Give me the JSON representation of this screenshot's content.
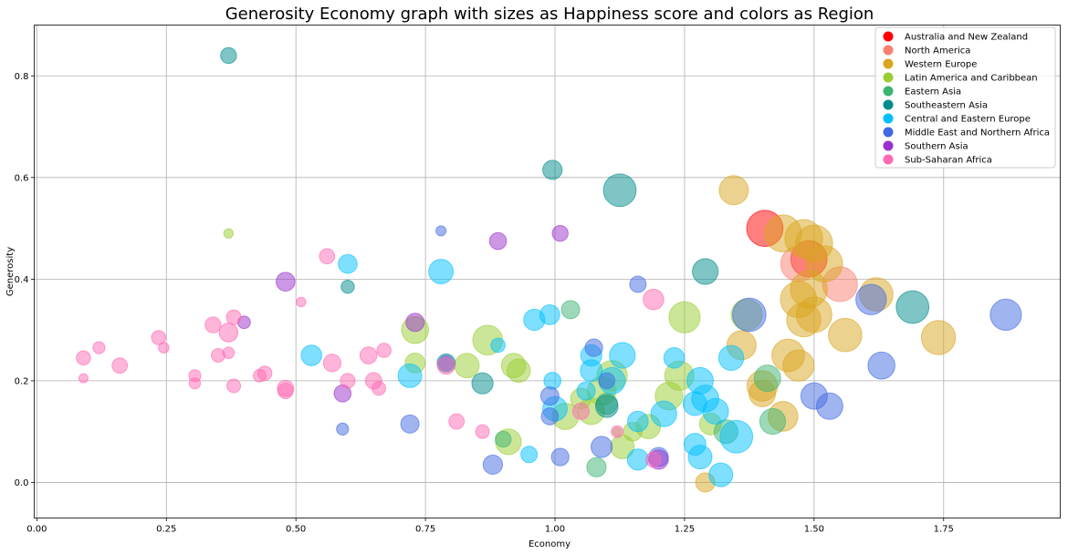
{
  "chart_data": {
    "type": "scatter",
    "title": "Generosity Economy graph with sizes as Happiness score and colors as Region",
    "xlabel": "Economy",
    "ylabel": "Generosity",
    "xlim": [
      -0.005,
      1.975
    ],
    "ylim": [
      -0.07,
      0.9
    ],
    "xticks": [
      0.0,
      0.25,
      0.5,
      0.75,
      1.0,
      1.25,
      1.5,
      1.75
    ],
    "xtick_labels": [
      "0.00",
      "0.25",
      "0.50",
      "0.75",
      "1.00",
      "1.25",
      "1.50",
      "1.75"
    ],
    "yticks": [
      0.0,
      0.2,
      0.4,
      0.6,
      0.8
    ],
    "ytick_labels": [
      "0.0",
      "0.2",
      "0.4",
      "0.6",
      "0.8"
    ],
    "grid": true,
    "legend_position": "top-right",
    "marker_alpha": 0.5,
    "series": [
      {
        "name": "Australia and New Zealand",
        "color": "#ff0000",
        "points": [
          [
            1.405,
            0.5,
            7.3
          ],
          [
            1.49,
            0.44,
            7.3
          ]
        ]
      },
      {
        "name": "North America",
        "color": "#fa8072",
        "points": [
          [
            1.55,
            0.39,
            7.1
          ],
          [
            1.47,
            0.43,
            7.2
          ]
        ]
      },
      {
        "name": "Western Europe",
        "color": "#daa520",
        "points": [
          [
            1.345,
            0.575,
            6.3
          ],
          [
            1.44,
            0.49,
            7.4
          ],
          [
            1.48,
            0.48,
            7.5
          ],
          [
            1.5,
            0.47,
            7.4
          ],
          [
            1.52,
            0.43,
            7.3
          ],
          [
            1.49,
            0.38,
            7.4
          ],
          [
            1.47,
            0.36,
            7.3
          ],
          [
            1.5,
            0.33,
            7.2
          ],
          [
            1.48,
            0.32,
            7.0
          ],
          [
            1.62,
            0.37,
            6.9
          ],
          [
            1.56,
            0.29,
            6.9
          ],
          [
            1.74,
            0.285,
            7.0
          ],
          [
            1.45,
            0.25,
            6.8
          ],
          [
            1.47,
            0.23,
            6.6
          ],
          [
            1.4,
            0.19,
            6.5
          ],
          [
            1.36,
            0.27,
            6.3
          ],
          [
            1.44,
            0.13,
            6.4
          ],
          [
            1.4,
            0.175,
            5.9
          ],
          [
            1.29,
            0.0,
            4.8
          ]
        ]
      },
      {
        "name": "Latin America and Caribbean",
        "color": "#9acd32",
        "points": [
          [
            1.25,
            0.325,
            6.6
          ],
          [
            1.37,
            0.33,
            6.6
          ],
          [
            1.24,
            0.21,
            6.3
          ],
          [
            0.87,
            0.28,
            6.4
          ],
          [
            0.73,
            0.3,
            6.0
          ],
          [
            1.11,
            0.21,
            6.5
          ],
          [
            1.09,
            0.18,
            6.2
          ],
          [
            1.07,
            0.14,
            5.9
          ],
          [
            0.92,
            0.23,
            5.6
          ],
          [
            0.93,
            0.22,
            5.4
          ],
          [
            0.83,
            0.23,
            5.6
          ],
          [
            1.02,
            0.13,
            5.9
          ],
          [
            1.13,
            0.07,
            5.5
          ],
          [
            1.18,
            0.11,
            5.6
          ],
          [
            1.22,
            0.17,
            6.1
          ],
          [
            0.91,
            0.08,
            5.8
          ],
          [
            0.73,
            0.235,
            4.9
          ],
          [
            1.15,
            0.1,
            4.7
          ],
          [
            1.12,
            0.1,
            2.8
          ],
          [
            0.37,
            0.49,
            3.0
          ],
          [
            1.05,
            0.165,
            5.0
          ],
          [
            1.3,
            0.115,
            5.2
          ]
        ]
      },
      {
        "name": "Eastern Asia",
        "color": "#3cb371",
        "points": [
          [
            1.42,
            0.12,
            5.8
          ],
          [
            1.41,
            0.205,
            5.9
          ],
          [
            1.33,
            0.1,
            5.5
          ],
          [
            1.1,
            0.155,
            5.1
          ],
          [
            0.9,
            0.085,
            4.2
          ],
          [
            1.03,
            0.34,
            4.6
          ],
          [
            1.08,
            0.03,
            4.8
          ]
        ]
      },
      {
        "name": "Southeastern Asia",
        "color": "#008b8b",
        "points": [
          [
            0.37,
            0.84,
            4.2
          ],
          [
            1.125,
            0.575,
            6.8
          ],
          [
            0.995,
            0.615,
            4.8
          ],
          [
            1.29,
            0.415,
            5.8
          ],
          [
            1.69,
            0.345,
            6.8
          ],
          [
            0.6,
            0.385,
            3.7
          ],
          [
            0.86,
            0.195,
            5.1
          ],
          [
            0.79,
            0.235,
            4.6
          ],
          [
            1.1,
            0.15,
            5.3
          ]
        ]
      },
      {
        "name": "Central and Eastern Europe",
        "color": "#00bfff",
        "points": [
          [
            0.78,
            0.415,
            5.6
          ],
          [
            0.6,
            0.43,
            4.7
          ],
          [
            0.96,
            0.32,
            5.1
          ],
          [
            0.99,
            0.33,
            4.9
          ],
          [
            1.13,
            0.25,
            5.8
          ],
          [
            1.23,
            0.245,
            5.0
          ],
          [
            1.07,
            0.25,
            5.1
          ],
          [
            1.07,
            0.22,
            5.2
          ],
          [
            1.11,
            0.2,
            5.9
          ],
          [
            1.28,
            0.2,
            5.9
          ],
          [
            1.34,
            0.245,
            5.7
          ],
          [
            1.29,
            0.165,
            6.0
          ],
          [
            1.31,
            0.14,
            5.8
          ],
          [
            1.35,
            0.09,
            6.8
          ],
          [
            1.27,
            0.075,
            5.2
          ],
          [
            1.21,
            0.135,
            5.8
          ],
          [
            1.27,
            0.155,
            5.5
          ],
          [
            1.28,
            0.05,
            5.5
          ],
          [
            1.32,
            0.015,
            5.5
          ],
          [
            1.16,
            0.045,
            5.1
          ],
          [
            1.16,
            0.12,
            5.0
          ],
          [
            1.0,
            0.145,
            5.6
          ],
          [
            0.995,
            0.2,
            4.4
          ],
          [
            0.53,
            0.25,
            5.0
          ],
          [
            0.72,
            0.21,
            5.5
          ],
          [
            0.89,
            0.27,
            3.9
          ],
          [
            0.95,
            0.055,
            4.3
          ],
          [
            1.06,
            0.18,
            4.6
          ]
        ]
      },
      {
        "name": "Middle East and Northern Africa",
        "color": "#4169e1",
        "points": [
          [
            1.375,
            0.33,
            6.9
          ],
          [
            1.61,
            0.36,
            6.5
          ],
          [
            1.87,
            0.33,
            6.6
          ],
          [
            1.63,
            0.23,
            6.0
          ],
          [
            1.53,
            0.15,
            5.9
          ],
          [
            1.5,
            0.17,
            5.9
          ],
          [
            1.16,
            0.39,
            4.3
          ],
          [
            1.075,
            0.265,
            4.5
          ],
          [
            1.09,
            0.07,
            5.1
          ],
          [
            1.2,
            0.05,
            4.8
          ],
          [
            1.01,
            0.05,
            4.5
          ],
          [
            0.88,
            0.035,
            4.8
          ],
          [
            0.72,
            0.115,
            4.6
          ],
          [
            0.99,
            0.17,
            4.6
          ],
          [
            0.99,
            0.13,
            4.4
          ],
          [
            1.1,
            0.2,
            4.2
          ],
          [
            0.79,
            0.235,
            4.0
          ],
          [
            0.59,
            0.105,
            3.5
          ],
          [
            0.78,
            0.495,
            3.1
          ]
        ]
      },
      {
        "name": "Southern Asia",
        "color": "#9932cc",
        "points": [
          [
            0.48,
            0.395,
            4.7
          ],
          [
            0.73,
            0.315,
            4.6
          ],
          [
            0.89,
            0.475,
            4.4
          ],
          [
            1.01,
            0.49,
            4.2
          ],
          [
            0.4,
            0.315,
            3.6
          ],
          [
            0.59,
            0.175,
            4.4
          ],
          [
            1.2,
            0.045,
            4.8
          ]
        ]
      },
      {
        "name": "Sub-Saharan Africa",
        "color": "#ff69b4",
        "points": [
          [
            0.09,
            0.205,
            2.9
          ],
          [
            0.09,
            0.245,
            3.9
          ],
          [
            0.12,
            0.265,
            3.5
          ],
          [
            0.16,
            0.23,
            4.1
          ],
          [
            0.235,
            0.285,
            3.9
          ],
          [
            0.245,
            0.265,
            3.2
          ],
          [
            0.305,
            0.21,
            3.5
          ],
          [
            0.305,
            0.195,
            3.3
          ],
          [
            0.34,
            0.31,
            4.2
          ],
          [
            0.35,
            0.25,
            3.8
          ],
          [
            0.37,
            0.255,
            3.4
          ],
          [
            0.37,
            0.295,
            4.7
          ],
          [
            0.38,
            0.325,
            4.0
          ],
          [
            0.38,
            0.19,
            3.8
          ],
          [
            0.43,
            0.21,
            3.6
          ],
          [
            0.44,
            0.215,
            3.9
          ],
          [
            0.48,
            0.185,
            4.3
          ],
          [
            0.48,
            0.18,
            4.1
          ],
          [
            0.51,
            0.355,
            3.0
          ],
          [
            0.56,
            0.445,
            4.1
          ],
          [
            0.57,
            0.235,
            4.5
          ],
          [
            0.6,
            0.2,
            4.0
          ],
          [
            0.64,
            0.25,
            4.4
          ],
          [
            0.65,
            0.2,
            4.3
          ],
          [
            0.67,
            0.26,
            3.9
          ],
          [
            0.66,
            0.185,
            3.8
          ],
          [
            0.79,
            0.23,
            4.5
          ],
          [
            0.81,
            0.12,
            4.1
          ],
          [
            0.86,
            0.1,
            3.8
          ],
          [
            1.05,
            0.14,
            4.3
          ],
          [
            1.19,
            0.36,
            5.0
          ],
          [
            1.19,
            0.045,
            4.1
          ],
          [
            1.12,
            0.1,
            3.5
          ]
        ]
      }
    ]
  }
}
